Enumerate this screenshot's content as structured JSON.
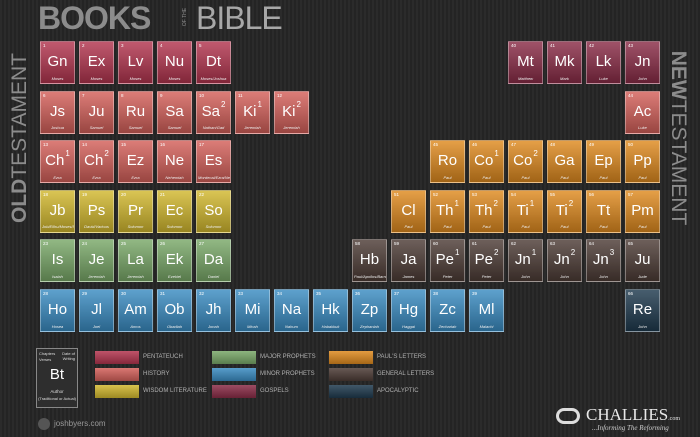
{
  "header": {
    "title_bold": "BOOKS",
    "title_small": "OF THE",
    "title_light": "BIBLE"
  },
  "side_left": {
    "bold": "OLD",
    "light": "TESTAMENT"
  },
  "side_right": {
    "bold": "NEW",
    "light": "TESTAMENT"
  },
  "categories": [
    {
      "label": "PENTATEUCH",
      "color": "#b3354f"
    },
    {
      "label": "HISTORY",
      "color": "#d4605a"
    },
    {
      "label": "WISDOM LITERATURE",
      "color": "#d2b82e"
    },
    {
      "label": "MAJOR PROPHETS",
      "color": "#79a868"
    },
    {
      "label": "MINOR PROPHETS",
      "color": "#3a8cc2"
    },
    {
      "label": "GOSPELS",
      "color": "#8a2c47"
    },
    {
      "label": "PAUL'S LETTERS",
      "color": "#df8a1f"
    },
    {
      "label": "GENERAL LETTERS",
      "color": "#4d3c36"
    },
    {
      "label": "APOCALYPTIC",
      "color": "#1f3a4e"
    }
  ],
  "rows": [
    {
      "ot": [
        {
          "n": "1",
          "s": "Gn",
          "a": "Moses",
          "category": "PENTATEUCH"
        },
        {
          "n": "2",
          "s": "Ex",
          "a": "Moses",
          "category": "PENTATEUCH"
        },
        {
          "n": "3",
          "s": "Lv",
          "a": "Moses",
          "category": "PENTATEUCH"
        },
        {
          "n": "4",
          "s": "Nu",
          "a": "Moses",
          "category": "PENTATEUCH"
        },
        {
          "n": "5",
          "s": "Dt",
          "a": "Moses/Joshua",
          "category": "PENTATEUCH"
        }
      ],
      "nt": [
        {
          "n": "40",
          "s": "Mt",
          "a": "Matthew",
          "category": "GOSPELS"
        },
        {
          "n": "41",
          "s": "Mk",
          "a": "Mark",
          "category": "GOSPELS"
        },
        {
          "n": "42",
          "s": "Lk",
          "a": "Luke",
          "category": "GOSPELS"
        },
        {
          "n": "43",
          "s": "Jn",
          "a": "John",
          "category": "GOSPELS"
        }
      ]
    },
    {
      "ot": [
        {
          "n": "6",
          "s": "Js",
          "a": "Joshua",
          "category": "HISTORY"
        },
        {
          "n": "7",
          "s": "Ju",
          "a": "Samuel",
          "category": "HISTORY"
        },
        {
          "n": "8",
          "s": "Ru",
          "a": "Samuel",
          "category": "HISTORY"
        },
        {
          "n": "9",
          "s": "Sa",
          "a": "Samuel",
          "category": "HISTORY"
        },
        {
          "n": "10",
          "s": "Sa",
          "sup": "2",
          "a": "Nathan/Gad",
          "category": "HISTORY"
        },
        {
          "n": "11",
          "s": "Ki",
          "sup": "1",
          "a": "Jeremiah",
          "category": "HISTORY"
        },
        {
          "n": "12",
          "s": "Ki",
          "sup": "2",
          "a": "Jeremiah",
          "category": "HISTORY"
        }
      ],
      "nt": [
        {
          "n": "44",
          "s": "Ac",
          "a": "Luke",
          "category": "HISTORY"
        }
      ]
    },
    {
      "ot": [
        {
          "n": "13",
          "s": "Ch",
          "sup": "1",
          "a": "Ezra",
          "category": "HISTORY"
        },
        {
          "n": "14",
          "s": "Ch",
          "sup": "2",
          "a": "Ezra",
          "category": "HISTORY"
        },
        {
          "n": "15",
          "s": "Ez",
          "a": "Ezra",
          "category": "HISTORY"
        },
        {
          "n": "16",
          "s": "Ne",
          "a": "Nehemiah",
          "category": "HISTORY"
        },
        {
          "n": "17",
          "s": "Es",
          "a": "Mordecai/Ezra/Nehemiah",
          "category": "HISTORY"
        }
      ],
      "nt": [
        {
          "n": "45",
          "s": "Ro",
          "a": "Paul",
          "category": "PAUL'S LETTERS"
        },
        {
          "n": "46",
          "s": "Co",
          "sup": "1",
          "a": "Paul",
          "category": "PAUL'S LETTERS"
        },
        {
          "n": "47",
          "s": "Co",
          "sup": "2",
          "a": "Paul",
          "category": "PAUL'S LETTERS"
        },
        {
          "n": "48",
          "s": "Ga",
          "a": "Paul",
          "category": "PAUL'S LETTERS"
        },
        {
          "n": "49",
          "s": "Ep",
          "a": "Paul",
          "category": "PAUL'S LETTERS"
        },
        {
          "n": "50",
          "s": "Pp",
          "a": "Paul",
          "category": "PAUL'S LETTERS"
        }
      ]
    },
    {
      "ot": [
        {
          "n": "18",
          "s": "Jb",
          "a": "Job/Elihu/Moses/Solomon",
          "category": "WISDOM LITERATURE"
        },
        {
          "n": "19",
          "s": "Ps",
          "a": "David/Various",
          "category": "WISDOM LITERATURE"
        },
        {
          "n": "20",
          "s": "Pr",
          "a": "Solomon",
          "category": "WISDOM LITERATURE"
        },
        {
          "n": "21",
          "s": "Ec",
          "a": "Solomon",
          "category": "WISDOM LITERATURE"
        },
        {
          "n": "22",
          "s": "So",
          "a": "Solomon",
          "category": "WISDOM LITERATURE"
        }
      ],
      "nt": [
        {
          "n": "51",
          "s": "Cl",
          "a": "Paul",
          "category": "PAUL'S LETTERS"
        },
        {
          "n": "52",
          "s": "Th",
          "sup": "1",
          "a": "Paul",
          "category": "PAUL'S LETTERS"
        },
        {
          "n": "53",
          "s": "Th",
          "sup": "2",
          "a": "Paul",
          "category": "PAUL'S LETTERS"
        },
        {
          "n": "54",
          "s": "Ti",
          "sup": "1",
          "a": "Paul",
          "category": "PAUL'S LETTERS"
        },
        {
          "n": "55",
          "s": "Ti",
          "sup": "2",
          "a": "Paul",
          "category": "PAUL'S LETTERS"
        },
        {
          "n": "56",
          "s": "Tt",
          "a": "Paul",
          "category": "PAUL'S LETTERS"
        },
        {
          "n": "57",
          "s": "Pm",
          "a": "Paul",
          "category": "PAUL'S LETTERS"
        }
      ]
    },
    {
      "ot": [
        {
          "n": "23",
          "s": "Is",
          "a": "Isaiah",
          "category": "MAJOR PROPHETS"
        },
        {
          "n": "24",
          "s": "Je",
          "a": "Jeremiah",
          "category": "MAJOR PROPHETS"
        },
        {
          "n": "25",
          "s": "La",
          "a": "Jeremiah",
          "category": "MAJOR PROPHETS"
        },
        {
          "n": "26",
          "s": "Ek",
          "a": "Ezekiel",
          "category": "MAJOR PROPHETS"
        },
        {
          "n": "27",
          "s": "Da",
          "a": "Daniel",
          "category": "MAJOR PROPHETS"
        }
      ],
      "nt": [
        {
          "n": "58",
          "s": "Hb",
          "a": "Paul/Apollos/Barnabas/Luke",
          "category": "GENERAL LETTERS"
        },
        {
          "n": "59",
          "s": "Ja",
          "a": "James",
          "category": "GENERAL LETTERS"
        },
        {
          "n": "60",
          "s": "Pe",
          "sup": "1",
          "a": "Peter",
          "category": "GENERAL LETTERS"
        },
        {
          "n": "61",
          "s": "Pe",
          "sup": "2",
          "a": "Peter",
          "category": "GENERAL LETTERS"
        },
        {
          "n": "62",
          "s": "Jn",
          "sup": "1",
          "a": "John",
          "category": "GENERAL LETTERS"
        },
        {
          "n": "63",
          "s": "Jn",
          "sup": "2",
          "a": "John",
          "category": "GENERAL LETTERS"
        },
        {
          "n": "64",
          "s": "Jn",
          "sup": "3",
          "a": "John",
          "category": "GENERAL LETTERS"
        },
        {
          "n": "65",
          "s": "Ju",
          "a": "Jude",
          "category": "GENERAL LETTERS"
        }
      ]
    },
    {
      "ot": [
        {
          "n": "28",
          "s": "Ho",
          "a": "Hosea",
          "category": "MINOR PROPHETS"
        },
        {
          "n": "29",
          "s": "Jl",
          "a": "Joel",
          "category": "MINOR PROPHETS"
        },
        {
          "n": "30",
          "s": "Am",
          "a": "Amos",
          "category": "MINOR PROPHETS"
        },
        {
          "n": "31",
          "s": "Ob",
          "a": "Obadiah",
          "category": "MINOR PROPHETS"
        },
        {
          "n": "32",
          "s": "Jh",
          "a": "Jonah",
          "category": "MINOR PROPHETS"
        },
        {
          "n": "33",
          "s": "Mi",
          "a": "Micah",
          "category": "MINOR PROPHETS"
        },
        {
          "n": "34",
          "s": "Na",
          "a": "Nahum",
          "category": "MINOR PROPHETS"
        },
        {
          "n": "35",
          "s": "Hk",
          "a": "Habakkuk",
          "category": "MINOR PROPHETS"
        },
        {
          "n": "36",
          "s": "Zp",
          "a": "Zephaniah",
          "category": "MINOR PROPHETS"
        },
        {
          "n": "37",
          "s": "Hg",
          "a": "Haggai",
          "category": "MINOR PROPHETS"
        },
        {
          "n": "38",
          "s": "Zc",
          "a": "Zechariah",
          "category": "MINOR PROPHETS"
        },
        {
          "n": "39",
          "s": "Ml",
          "a": "Malachi",
          "category": "MINOR PROPHETS"
        }
      ],
      "nt": [
        {
          "n": "66",
          "s": "Re",
          "a": "John",
          "category": "APOCALYPTIC"
        }
      ]
    }
  ],
  "key": {
    "chapters": "Chapters",
    "date": "Date of Writing",
    "verses": "Verses",
    "symbol": "Bt",
    "author": "Author",
    "author_note": "(Traditional or Actual)"
  },
  "credits": {
    "left": "joshbyers.com",
    "brand": "CHALLIES",
    "brand_suffix": ".com",
    "tagline": "...Informing The Reforming"
  }
}
